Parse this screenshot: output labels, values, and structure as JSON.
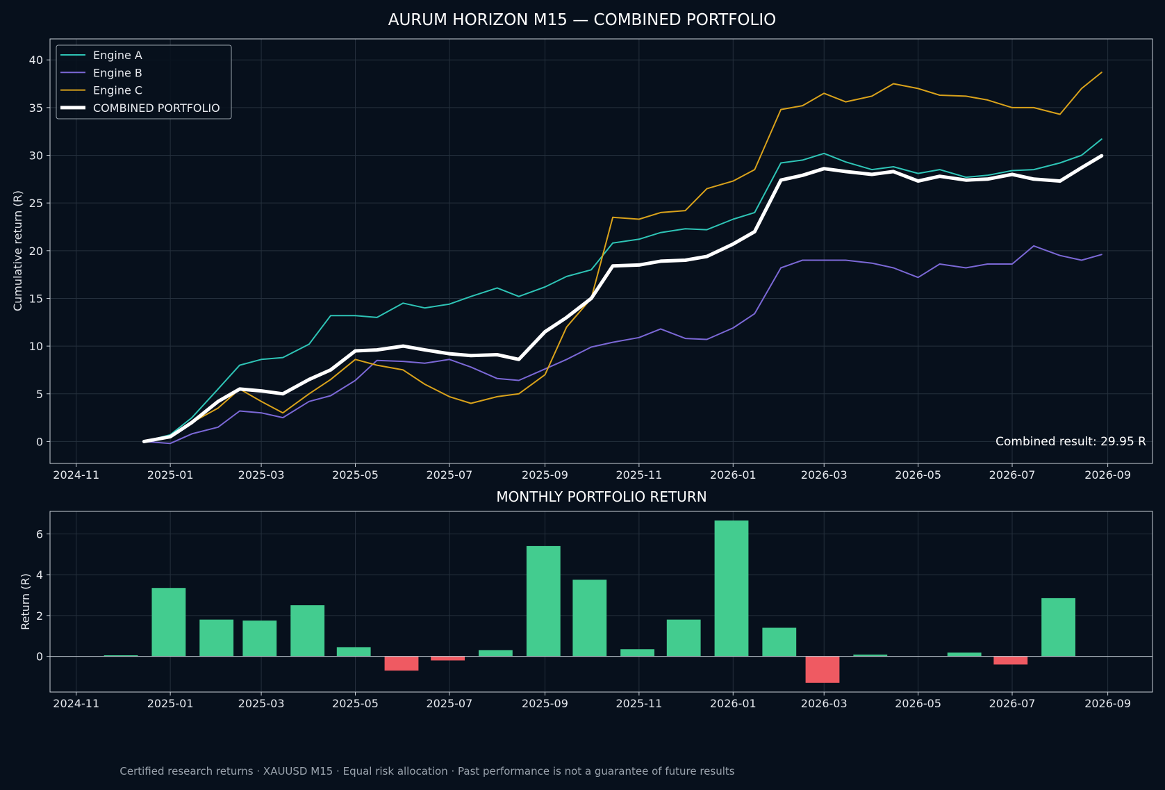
{
  "figure": {
    "title": "AURUM HORIZON M15 — COMBINED PORTFOLIO",
    "footer": "Certified research returns · XAUUSD M15 · Equal risk allocation · Past performance is not a guarantee of future results",
    "background": "#07101c"
  },
  "chart_data": [
    {
      "type": "line",
      "title": "",
      "xlabel": "",
      "ylabel": "Cumulative return (R)",
      "xlim": [
        "2024-10-15",
        "2026-09-30"
      ],
      "ylim": [
        -2.3,
        42.2
      ],
      "x_ticks": [
        "2024-11",
        "2025-01",
        "2025-03",
        "2025-05",
        "2025-07",
        "2025-09",
        "2025-11",
        "2026-01",
        "2026-03",
        "2026-05",
        "2026-07",
        "2026-09"
      ],
      "y_ticks": [
        0,
        5,
        10,
        15,
        20,
        25,
        30,
        35,
        40
      ],
      "grid": true,
      "legend": "top-left",
      "annotation": "Combined result: 29.95 R",
      "series": [
        {
          "name": "Engine A",
          "color": "#2ec4b6",
          "x": [
            "2024-12-15",
            "2025-01-01",
            "2025-01-15",
            "2025-02-01",
            "2025-02-15",
            "2025-03-01",
            "2025-03-15",
            "2025-04-01",
            "2025-04-15",
            "2025-05-01",
            "2025-05-15",
            "2025-06-01",
            "2025-06-15",
            "2025-07-01",
            "2025-07-15",
            "2025-08-01",
            "2025-08-15",
            "2025-09-01",
            "2025-09-15",
            "2025-10-01",
            "2025-10-15",
            "2025-11-01",
            "2025-11-15",
            "2025-12-01",
            "2025-12-15",
            "2026-01-01",
            "2026-01-15",
            "2026-02-01",
            "2026-02-15",
            "2026-03-01",
            "2026-03-15",
            "2026-04-01",
            "2026-04-15",
            "2026-05-01",
            "2026-05-15",
            "2026-06-01",
            "2026-06-15",
            "2026-07-01",
            "2026-07-15",
            "2026-08-01",
            "2026-08-15",
            "2026-08-28"
          ],
          "y": [
            0,
            0.7,
            2.5,
            5.5,
            8.0,
            8.6,
            8.8,
            10.2,
            13.2,
            13.2,
            13.0,
            14.5,
            14.0,
            14.4,
            15.2,
            16.1,
            15.2,
            16.2,
            17.3,
            18.0,
            20.8,
            21.2,
            21.9,
            22.3,
            22.2,
            23.3,
            24.0,
            29.2,
            29.5,
            30.2,
            29.3,
            28.5,
            28.8,
            28.1,
            28.5,
            27.7,
            27.9,
            28.4,
            28.5,
            29.2,
            30.0,
            31.7
          ]
        },
        {
          "name": "Engine B",
          "color": "#7b68d6",
          "x": [
            "2024-12-15",
            "2025-01-01",
            "2025-01-15",
            "2025-02-01",
            "2025-02-15",
            "2025-03-01",
            "2025-03-15",
            "2025-04-01",
            "2025-04-15",
            "2025-05-01",
            "2025-05-15",
            "2025-06-01",
            "2025-06-15",
            "2025-07-01",
            "2025-07-15",
            "2025-08-01",
            "2025-08-15",
            "2025-09-01",
            "2025-09-15",
            "2025-10-01",
            "2025-10-15",
            "2025-11-01",
            "2025-11-15",
            "2025-12-01",
            "2025-12-15",
            "2026-01-01",
            "2026-01-15",
            "2026-02-01",
            "2026-02-15",
            "2026-03-01",
            "2026-03-15",
            "2026-04-01",
            "2026-04-15",
            "2026-05-01",
            "2026-05-15",
            "2026-06-01",
            "2026-06-15",
            "2026-07-01",
            "2026-07-15",
            "2026-08-01",
            "2026-08-15",
            "2026-08-28"
          ],
          "y": [
            0,
            -0.2,
            0.8,
            1.5,
            3.2,
            3.0,
            2.5,
            4.2,
            4.8,
            6.4,
            8.5,
            8.4,
            8.2,
            8.6,
            7.8,
            6.6,
            6.4,
            7.6,
            8.6,
            9.9,
            10.4,
            10.9,
            11.8,
            10.8,
            10.7,
            11.9,
            13.4,
            18.2,
            19.0,
            19.0,
            19.0,
            18.7,
            18.2,
            17.2,
            18.6,
            18.2,
            18.6,
            18.6,
            20.5,
            19.5,
            19.0,
            19.6
          ]
        },
        {
          "name": "Engine C",
          "color": "#d9a21b",
          "x": [
            "2024-12-15",
            "2025-01-01",
            "2025-01-15",
            "2025-02-01",
            "2025-02-15",
            "2025-03-01",
            "2025-03-15",
            "2025-04-01",
            "2025-04-15",
            "2025-05-01",
            "2025-05-15",
            "2025-06-01",
            "2025-06-15",
            "2025-07-01",
            "2025-07-15",
            "2025-08-01",
            "2025-08-15",
            "2025-09-01",
            "2025-09-15",
            "2025-10-01",
            "2025-10-15",
            "2025-11-01",
            "2025-11-15",
            "2025-12-01",
            "2025-12-15",
            "2026-01-01",
            "2026-01-15",
            "2026-02-01",
            "2026-02-15",
            "2026-03-01",
            "2026-03-15",
            "2026-04-01",
            "2026-04-15",
            "2026-05-01",
            "2026-05-15",
            "2026-06-01",
            "2026-06-15",
            "2026-07-01",
            "2026-07-15",
            "2026-08-01",
            "2026-08-15",
            "2026-08-28"
          ],
          "y": [
            0,
            0.5,
            2.0,
            3.5,
            5.5,
            4.2,
            3.0,
            5.0,
            6.5,
            8.6,
            8.0,
            7.5,
            6.0,
            4.7,
            4.0,
            4.7,
            5.0,
            7.0,
            12.0,
            15.0,
            23.5,
            23.3,
            24.0,
            24.2,
            26.5,
            27.3,
            28.5,
            34.8,
            35.2,
            36.5,
            35.6,
            36.2,
            37.5,
            37.0,
            36.3,
            36.2,
            35.8,
            35.0,
            35.0,
            34.3,
            37.0,
            38.7
          ]
        },
        {
          "name": "COMBINED PORTFOLIO",
          "color": "#ffffff",
          "x": [
            "2024-12-15",
            "2025-01-01",
            "2025-01-15",
            "2025-02-01",
            "2025-02-15",
            "2025-03-01",
            "2025-03-15",
            "2025-04-01",
            "2025-04-15",
            "2025-05-01",
            "2025-05-15",
            "2025-06-01",
            "2025-06-15",
            "2025-07-01",
            "2025-07-15",
            "2025-08-01",
            "2025-08-15",
            "2025-09-01",
            "2025-09-15",
            "2025-10-01",
            "2025-10-15",
            "2025-11-01",
            "2025-11-15",
            "2025-12-01",
            "2025-12-15",
            "2026-01-01",
            "2026-01-15",
            "2026-02-01",
            "2026-02-15",
            "2026-03-01",
            "2026-03-15",
            "2026-04-01",
            "2026-04-15",
            "2026-05-01",
            "2026-05-15",
            "2026-06-01",
            "2026-06-15",
            "2026-07-01",
            "2026-07-15",
            "2026-08-01",
            "2026-08-15",
            "2026-08-28"
          ],
          "y": [
            0,
            0.5,
            2.0,
            4.2,
            5.5,
            5.3,
            5.0,
            6.5,
            7.5,
            9.5,
            9.6,
            10.0,
            9.6,
            9.2,
            9.0,
            9.1,
            8.6,
            11.5,
            13.0,
            15.0,
            18.4,
            18.5,
            18.9,
            19.0,
            19.4,
            20.7,
            22.0,
            27.4,
            27.9,
            28.6,
            28.3,
            28.0,
            28.3,
            27.3,
            27.8,
            27.4,
            27.5,
            28.0,
            27.5,
            27.3,
            28.7,
            29.95
          ]
        }
      ]
    },
    {
      "type": "bar",
      "title": "MONTHLY PORTFOLIO RETURN",
      "xlabel": "",
      "ylabel": "Return (R)",
      "xlim": [
        "2024-10-15",
        "2026-09-30"
      ],
      "ylim": [
        -1.75,
        7.1
      ],
      "x_ticks": [
        "2024-11",
        "2025-01",
        "2025-03",
        "2025-05",
        "2025-07",
        "2025-09",
        "2025-11",
        "2026-01",
        "2026-03",
        "2026-05",
        "2026-07",
        "2026-09"
      ],
      "y_ticks": [
        0,
        2,
        4,
        6
      ],
      "grid": true,
      "positive_color": "#43cc8f",
      "negative_color": "#ef5a62",
      "categories": [
        "2024-11",
        "2024-12",
        "2025-01",
        "2025-02",
        "2025-03",
        "2025-04",
        "2025-05",
        "2025-06",
        "2025-07",
        "2025-08",
        "2025-09",
        "2025-10",
        "2025-11",
        "2025-12",
        "2026-01",
        "2026-02",
        "2026-03",
        "2026-04",
        "2026-05",
        "2026-06",
        "2026-07",
        "2026-08"
      ],
      "bar_dates": [
        "2024-11-30",
        "2024-12-31",
        "2025-01-31",
        "2025-02-28",
        "2025-03-31",
        "2025-04-30",
        "2025-05-31",
        "2025-06-30",
        "2025-07-31",
        "2025-08-31",
        "2025-09-30",
        "2025-10-31",
        "2025-11-30",
        "2025-12-31",
        "2026-01-31",
        "2026-02-28",
        "2026-03-31",
        "2026-04-30",
        "2026-05-31",
        "2026-06-30",
        "2026-07-31",
        "2026-08-31"
      ],
      "values": [
        0.05,
        3.35,
        1.8,
        1.75,
        2.5,
        0.45,
        -0.7,
        -0.2,
        0.3,
        5.4,
        3.75,
        0.35,
        1.8,
        6.65,
        1.4,
        -1.3,
        0.08,
        0.0,
        0.18,
        -0.4,
        2.85,
        0.0
      ]
    }
  ]
}
